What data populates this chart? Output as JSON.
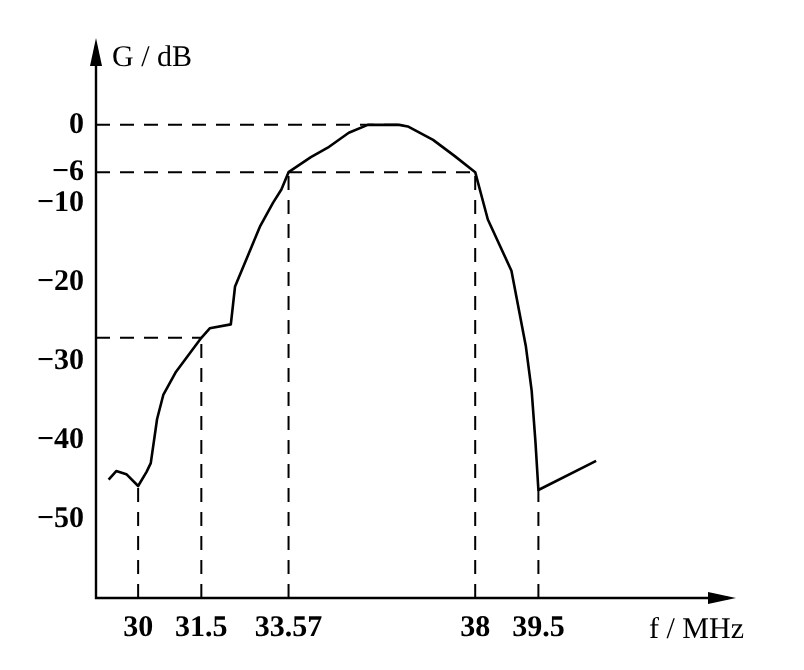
{
  "chart_data": {
    "type": "line",
    "xlabel": "f / MHz",
    "ylabel": "G / dB",
    "x": [
      29.3,
      29.48,
      29.72,
      30,
      30.2,
      30.3,
      30.45,
      30.6,
      30.9,
      31.5,
      31.7,
      32.2,
      32.3,
      32.9,
      33.2,
      33.4,
      33.57,
      34.1,
      34.5,
      35,
      35.45,
      36.2,
      36.4,
      37,
      37.5,
      38,
      38.3,
      38.86,
      39.2,
      39.34,
      39.43,
      39.5,
      40.87
    ],
    "series": [
      {
        "color": "#000000",
        "values": [
          -45,
          -43.9,
          -44.3,
          -45.8,
          -44,
          -42.9,
          -37.3,
          -34.2,
          -31.3,
          -27,
          -25.8,
          -25.3,
          -20.5,
          -12.8,
          -9.9,
          -8.2,
          -6,
          -4.1,
          -2.9,
          -1,
          0,
          0,
          -0.2,
          -1.9,
          -3.9,
          -6,
          -12,
          -18.5,
          -28,
          -33.7,
          -40.2,
          -46.3,
          -42.6
        ]
      }
    ],
    "xlim": [
      29,
      44
    ],
    "ylim": [
      -60,
      10
    ],
    "xticks": [
      30,
      31.5,
      33.57,
      38,
      39.5
    ],
    "yticks": [
      0,
      -6,
      -10,
      -20,
      -30,
      -40,
      -50
    ],
    "grid": false,
    "legend": false,
    "marker": "none",
    "line_style": "solid",
    "ref_lines": [
      {
        "axis": "y",
        "value": 0,
        "line_style": "dashed"
      },
      {
        "axis": "y",
        "value": -6,
        "line_style": "dashed"
      },
      {
        "axis": "y",
        "value": -27,
        "line_style": "dashed"
      },
      {
        "axis": "x",
        "value": 30,
        "line_style": "dashed"
      },
      {
        "axis": "x",
        "value": 31.5,
        "line_style": "dashed"
      },
      {
        "axis": "x",
        "value": 33.57,
        "line_style": "dashed"
      },
      {
        "axis": "x",
        "value": 38,
        "line_style": "dashed"
      },
      {
        "axis": "x",
        "value": 39.5,
        "line_style": "dashed"
      }
    ]
  }
}
